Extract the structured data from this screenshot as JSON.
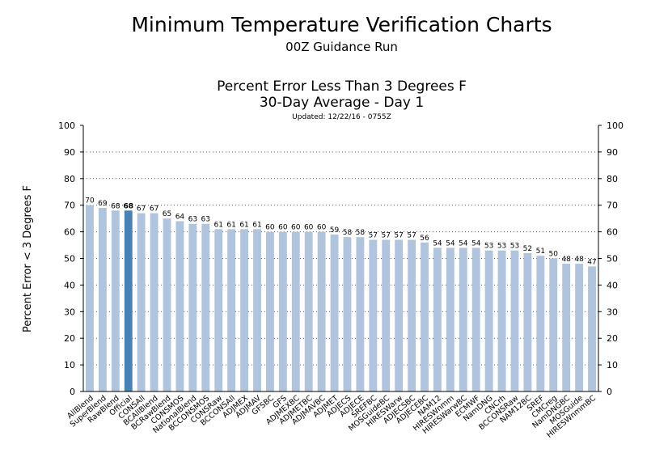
{
  "page": {
    "title": "Minimum Temperature Verification Charts",
    "subtitle": "00Z Guidance Run",
    "chart_title": "Percent Error Less Than 3 Degrees F",
    "chart_subtitle": "30-Day Average - Day 1",
    "updated": "Updated: 12/22/16 - 0755Z"
  },
  "colors": {
    "bar": "#b0c4de",
    "highlight": "#4682b4",
    "grid": "#555555"
  },
  "chart_data": {
    "type": "bar",
    "ylabel": "Percent Error < 3 Degrees F",
    "ylim": [
      0,
      100
    ],
    "yticks": [
      0,
      10,
      20,
      30,
      40,
      50,
      60,
      70,
      80,
      90,
      100
    ],
    "grid": true,
    "highlight_category": "Official",
    "categories": [
      "AllBlend",
      "SuperBlend",
      "RawBlend",
      "Official",
      "CONSAll",
      "BCAllBlend",
      "BCRawBlend",
      "CONSMOS",
      "NationalBlend",
      "BCCONSMOS",
      "CONSRaw",
      "BCCONSAll",
      "ADJMEX",
      "ADJMAV",
      "GFSBC",
      "GFS",
      "ADJMEXBC",
      "ADJMETBC",
      "ADJMAVBC",
      "ADJMET",
      "ADJECS",
      "ADJECE",
      "SREFBC",
      "MOSGuideBC",
      "HIRESWarw",
      "ADJECSBC",
      "ADJECEBC",
      "NAM12",
      "HIRESWnmm",
      "HIRESWarwBC",
      "ECMWF",
      "NamDNG",
      "CNCrh",
      "BCCONSRaw",
      "NAM12BC",
      "SREF",
      "CMCreg",
      "NamDNGBC",
      "MOSGuide",
      "HIRESWnmmBC"
    ],
    "values": [
      70,
      69,
      68,
      68,
      67,
      67,
      65,
      64,
      63,
      63,
      61,
      61,
      61,
      61,
      60,
      60,
      60,
      60,
      60,
      59,
      58,
      58,
      57,
      57,
      57,
      57,
      56,
      54,
      54,
      54,
      54,
      53,
      53,
      53,
      52,
      51,
      50,
      48,
      48,
      47
    ]
  }
}
